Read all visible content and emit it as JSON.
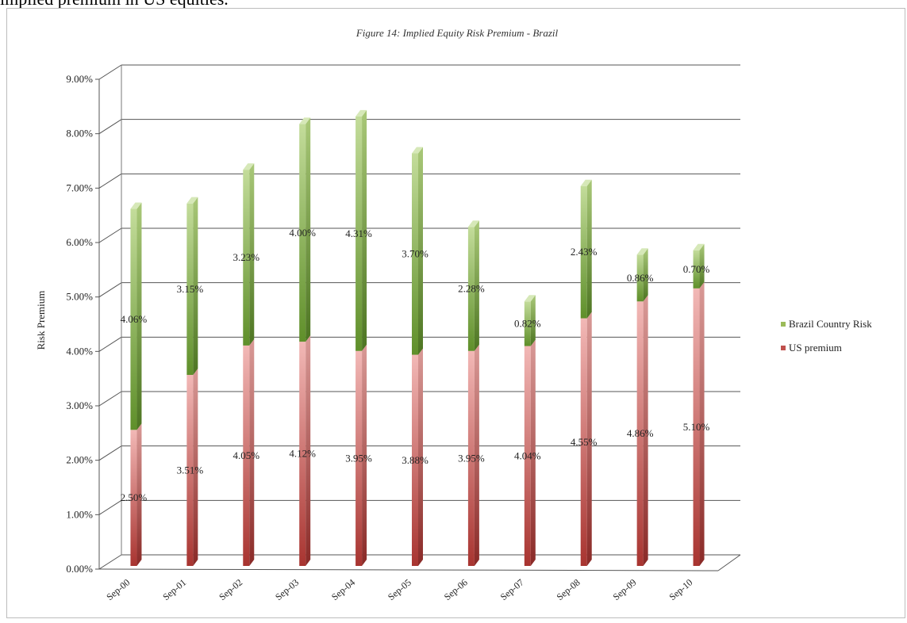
{
  "header": {
    "text": "implied premium in US equities."
  },
  "chart_data": {
    "type": "bar",
    "stacked": true,
    "three_d": true,
    "title": "Figure 14: Implied Equity Risk Premium - Brazil",
    "ylabel": "Risk Premium",
    "xlabel": "",
    "categories": [
      "Sep-00",
      "Sep-01",
      "Sep-02",
      "Sep-03",
      "Sep-04",
      "Sep-05",
      "Sep-06",
      "Sep-07",
      "Sep-08",
      "Sep-09",
      "Sep-10"
    ],
    "series": [
      {
        "name": "US premium",
        "values": [
          2.5,
          3.51,
          4.05,
          4.12,
          3.95,
          3.88,
          3.95,
          4.04,
          4.55,
          4.86,
          5.1
        ],
        "labels": [
          "2.50%",
          "3.51%",
          "4.05%",
          "4.12%",
          "3.95%",
          "3.88%",
          "3.95%",
          "4.04%",
          "4.55%",
          "4.86%",
          "5.10%"
        ],
        "color": "#c0504d"
      },
      {
        "name": "Brazil Country Risk",
        "values": [
          4.06,
          3.15,
          3.23,
          4.0,
          4.31,
          3.7,
          2.28,
          0.82,
          2.43,
          0.86,
          0.7
        ],
        "labels": [
          "4.06%",
          "3.15%",
          "3.23%",
          "4.00%",
          "4.31%",
          "3.70%",
          "2.28%",
          "0.82%",
          "2.43%",
          "0.86%",
          "0.70%"
        ],
        "color": "#9bbb59"
      }
    ],
    "ylim": [
      0,
      9
    ],
    "yticks": [
      "0.00%",
      "1.00%",
      "2.00%",
      "3.00%",
      "4.00%",
      "5.00%",
      "6.00%",
      "7.00%",
      "8.00%",
      "9.00%"
    ],
    "grid": true,
    "legend": {
      "position": "right",
      "entries": [
        "Brazil Country Risk",
        "US premium"
      ]
    }
  }
}
